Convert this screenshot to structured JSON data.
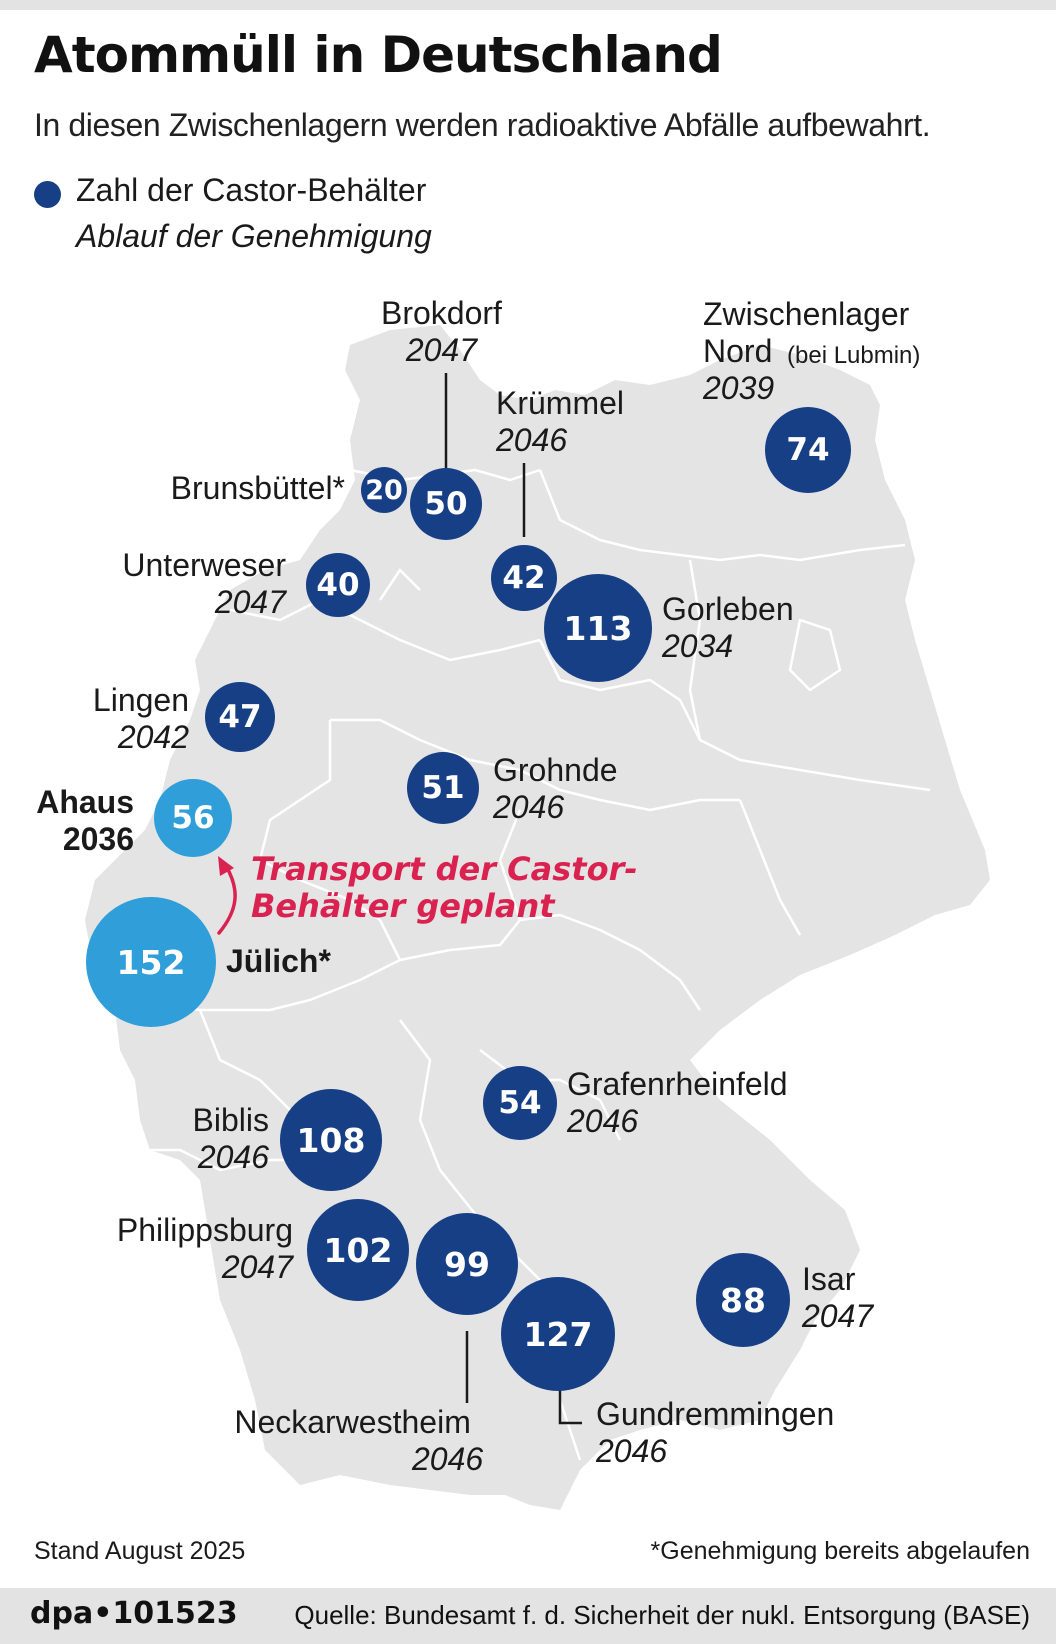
{
  "header": {
    "title": "Atommüll in Deutschland",
    "subtitle": "In diesen Zwischenlagern werden radioaktive Abfälle aufbewahrt."
  },
  "legend": {
    "count_label": "Zahl der Castor-Behälter",
    "expiry_label": "Ablauf der Genehmigung"
  },
  "colors": {
    "storage_site": "#173f86",
    "transport_site": "#2f9ed9",
    "transport_text": "#d9224f",
    "land": "#e4e4e4"
  },
  "sites": [
    {
      "name": "Brokdorf",
      "year": "2047",
      "count": "50"
    },
    {
      "name": "Zwischenlager Nord",
      "name_note": "(bei Lubmin)",
      "year": "2039",
      "count": "74"
    },
    {
      "name": "Krümmel",
      "year": "2046",
      "count": "42"
    },
    {
      "name": "Brunsbüttel*",
      "year": "",
      "count": "20"
    },
    {
      "name": "Unterweser",
      "year": "2047",
      "count": "40"
    },
    {
      "name": "Gorleben",
      "year": "2034",
      "count": "113"
    },
    {
      "name": "Lingen",
      "year": "2042",
      "count": "47"
    },
    {
      "name": "Grohnde",
      "year": "2046",
      "count": "51"
    },
    {
      "name": "Ahaus",
      "year": "2036",
      "count": "56"
    },
    {
      "name": "Jülich*",
      "year": "",
      "count": "152"
    },
    {
      "name": "Grafenrheinfeld",
      "year": "2046",
      "count": "54"
    },
    {
      "name": "Biblis",
      "year": "2046",
      "count": "108"
    },
    {
      "name": "Philippsburg",
      "year": "2047",
      "count": "102"
    },
    {
      "name": "Neckarwestheim",
      "year": "2046",
      "count": "99"
    },
    {
      "name": "Gundremmingen",
      "year": "2046",
      "count": "127"
    },
    {
      "name": "Isar",
      "year": "2047",
      "count": "88"
    }
  ],
  "transport": {
    "line1": "Transport der Castor-",
    "line2": "Behälter geplant"
  },
  "footer": {
    "stand": "Stand August 2025",
    "note": "*Genehmigung bereits abgelaufen",
    "id": "dpa•101523",
    "source": "Quelle: Bundesamt f. d. Sicherheit der nukl. Entsorgung (BASE)"
  }
}
